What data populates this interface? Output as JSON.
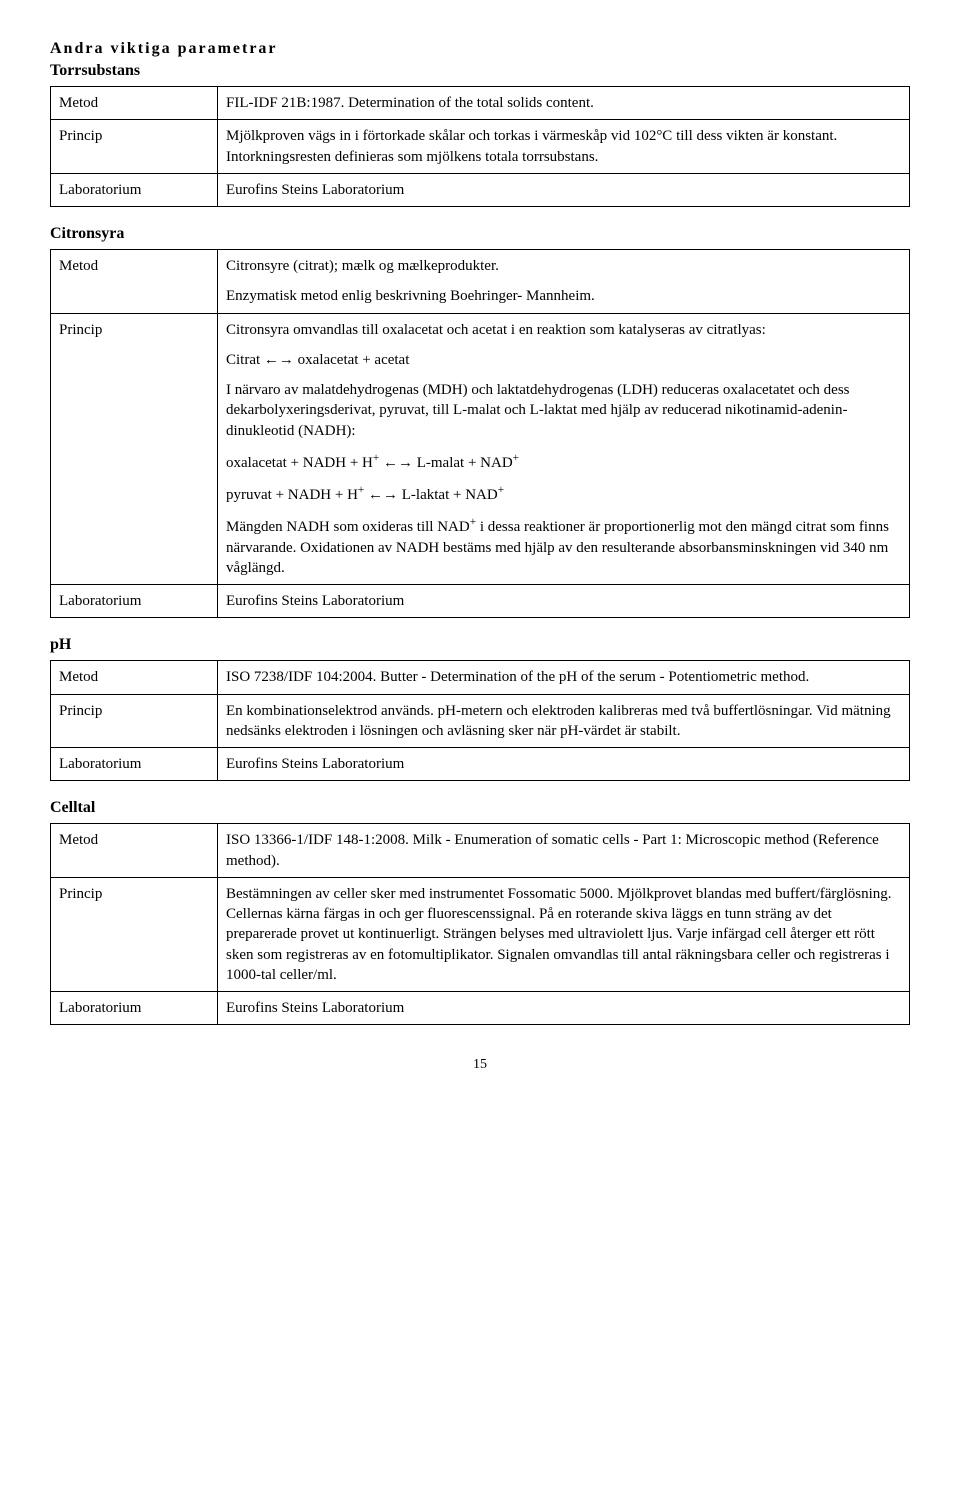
{
  "page": {
    "section_heading": "Andra viktiga parametrar",
    "page_number": "15"
  },
  "labels": {
    "metod": "Metod",
    "princip": "Princip",
    "laboratorium": "Laboratorium"
  },
  "torrsubstans": {
    "title": "Torrsubstans",
    "metod": "FIL-IDF 21B:1987. Determination of the total solids content.",
    "princip": "Mjölkproven vägs in i förtorkade skålar och torkas i värmeskåp vid 102°C till dess vikten är konstant. Intorkningsresten definieras som mjölkens totala torrsubstans.",
    "laboratorium": "Eurofins Steins Laboratorium"
  },
  "citronsyra": {
    "title": "Citronsyra",
    "metod_p1": "Citronsyre (citrat); mælk og mælkeprodukter.",
    "metod_p2": "Enzymatisk metod enlig beskrivning Boehringer- Mannheim.",
    "princip_p1": "Citronsyra omvandlas till oxalacetat och acetat i en reaktion som katalyseras av citratlyas:",
    "princip_p2": "Citrat ←→ oxalacetat + acetat",
    "princip_p3": "I närvaro av malatdehydrogenas (MDH) och laktatdehydrogenas (LDH) reduceras oxalacetatet och dess dekarbolyxeringsderivat, pyruvat, till L-malat och L-laktat med hjälp av reducerad nikotinamid-adenin-dinukleotid (NADH):",
    "princip_p4_pre": "oxalacetat + NADH + H",
    "princip_p4_post": " ←→ L-malat + NAD",
    "princip_p5_pre": "pyruvat + NADH + H",
    "princip_p5_post": " ←→ L-laktat + NAD",
    "princip_p6_pre": "Mängden NADH som oxideras till NAD",
    "princip_p6_post": " i dessa reaktioner är proportionerlig mot den mängd citrat som finns närvarande. Oxidationen av NADH bestäms med hjälp av den resulterande absorbansminskningen vid 340 nm våglängd.",
    "sup_plus": "+",
    "laboratorium": "Eurofins Steins Laboratorium"
  },
  "ph": {
    "title": "pH",
    "metod": "ISO 7238/IDF 104:2004. Butter - Determination of the pH of the serum - Potentiometric method.",
    "princip": "En kombinationselektrod används. pH-metern och elektroden kalibreras med två buffertlösningar. Vid mätning nedsänks elektroden i lösningen och avläsning sker när pH-värdet är stabilt.",
    "laboratorium": "Eurofins Steins Laboratorium"
  },
  "celltal": {
    "title": "Celltal",
    "metod": "ISO 13366-1/IDF 148-1:2008. Milk - Enumeration of somatic cells - Part 1: Microscopic method (Reference method).",
    "princip": "Bestämningen av celler sker med instrumentet Fossomatic 5000. Mjölkprovet blandas med buffert/färglösning. Cellernas kärna färgas in och ger fluorescenssignal. På en roterande skiva läggs en tunn sträng av det preparerade provet ut kontinuerligt. Strängen belyses med ultraviolett ljus. Varje infärgad cell återger ett rött sken som registreras av en fotomultiplikator. Signalen omvandlas till antal räkningsbara celler och registreras i 1000-tal celler/ml.",
    "laboratorium": "Eurofins Steins Laboratorium"
  }
}
